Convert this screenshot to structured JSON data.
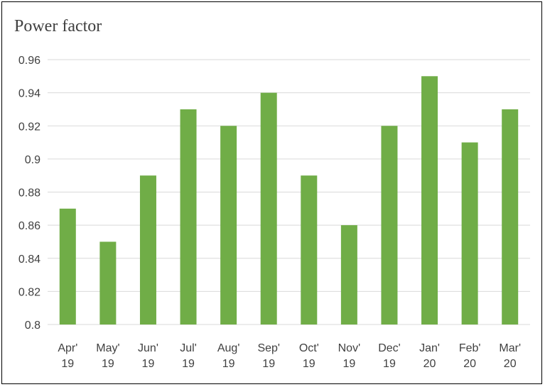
{
  "chart_data": {
    "type": "bar",
    "title": "Power factor",
    "xlabel": "",
    "ylabel": "",
    "ylim": [
      0.8,
      0.96
    ],
    "yticks": [
      "0.8",
      "0.82",
      "0.84",
      "0.86",
      "0.88",
      "0.9",
      "0.92",
      "0.94",
      "0.96"
    ],
    "categories": [
      [
        "Apr'",
        "19"
      ],
      [
        "May'",
        "19"
      ],
      [
        "Jun'",
        "19"
      ],
      [
        "Jul'",
        "19"
      ],
      [
        "Aug'",
        "19"
      ],
      [
        "Sep'",
        "19"
      ],
      [
        "Oct'",
        "19"
      ],
      [
        "Nov'",
        "19"
      ],
      [
        "Dec'",
        "19"
      ],
      [
        "Jan'",
        "20"
      ],
      [
        "Feb'",
        "20"
      ],
      [
        "Mar'",
        "20"
      ]
    ],
    "values": [
      0.87,
      0.85,
      0.89,
      0.93,
      0.92,
      0.94,
      0.89,
      0.86,
      0.92,
      0.95,
      0.91,
      0.93
    ],
    "grid": true,
    "legend": "none",
    "colors": {
      "bar": "#70ad47",
      "grid": "#d9d9d9",
      "axis": "#d9d9d9",
      "text": "#404040"
    }
  }
}
